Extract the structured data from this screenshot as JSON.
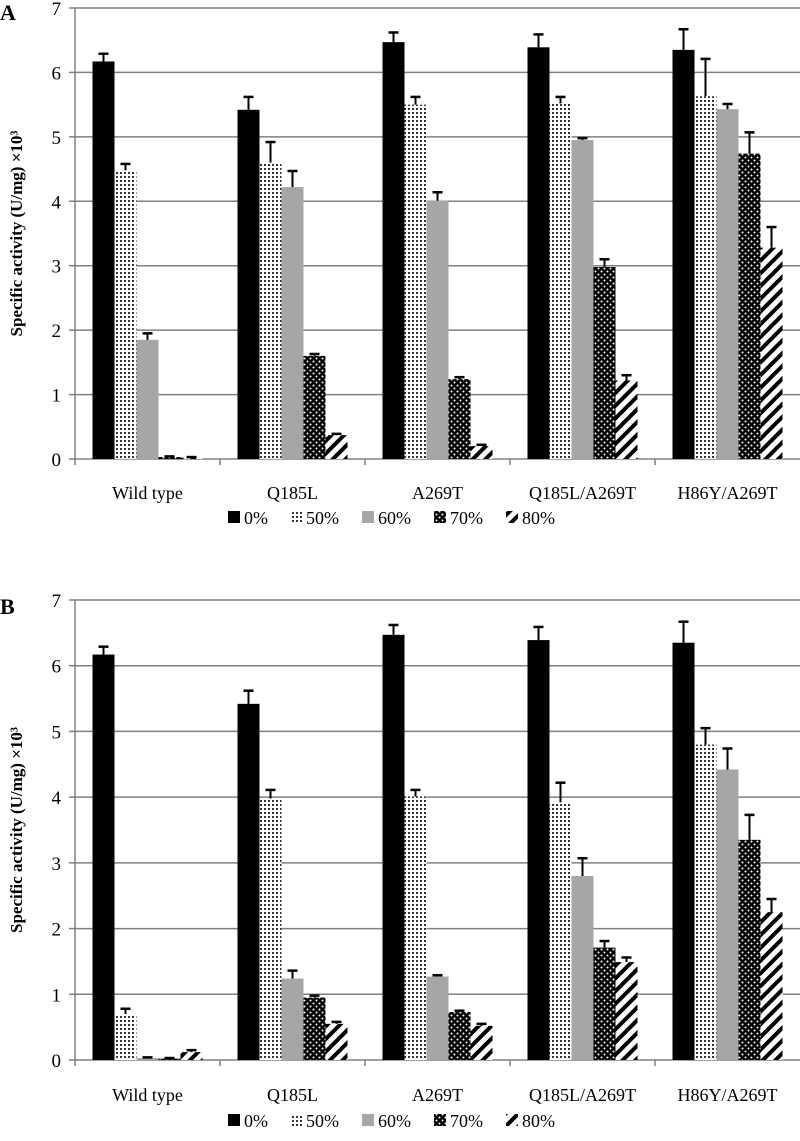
{
  "chart_data": [
    {
      "type": "bar",
      "panel": "A",
      "ylabel": "Specific activity (U/mg) ×10³",
      "ylim": [
        0,
        7
      ],
      "yticks": [
        "0",
        "1",
        "2",
        "3",
        "4",
        "5",
        "6",
        "7"
      ],
      "grid": true,
      "legend_position": "bottom",
      "categories": [
        "Wild type",
        "Q185L",
        "A269T",
        "Q185L/A269T",
        "H86Y/A269T"
      ],
      "series": [
        {
          "name": "0%",
          "values": [
            6.17,
            5.42,
            6.47,
            6.39,
            6.35
          ],
          "errors": [
            0.12,
            0.2,
            0.15,
            0.2,
            0.32
          ]
        },
        {
          "name": "50%",
          "values": [
            4.48,
            4.6,
            5.5,
            5.52,
            5.63
          ],
          "errors": [
            0.1,
            0.32,
            0.12,
            0.1,
            0.58
          ]
        },
        {
          "name": "60%",
          "values": [
            1.85,
            4.22,
            4.01,
            4.95,
            5.43
          ],
          "errors": [
            0.1,
            0.25,
            0.13,
            0.03,
            0.08
          ]
        },
        {
          "name": "70%",
          "values": [
            0.03,
            1.6,
            1.24,
            2.98,
            4.74
          ],
          "errors": [
            0.01,
            0.03,
            0.03,
            0.12,
            0.33
          ]
        },
        {
          "name": "80%",
          "values": [
            0.02,
            0.37,
            0.2,
            1.22,
            3.28
          ],
          "errors": [
            0.01,
            0.02,
            0.02,
            0.08,
            0.32
          ]
        }
      ]
    },
    {
      "type": "bar",
      "panel": "B",
      "ylabel": "Specific activity (U/mg) ×10³",
      "ylim": [
        0,
        7
      ],
      "yticks": [
        "0",
        "1",
        "2",
        "3",
        "4",
        "5",
        "6",
        "7"
      ],
      "grid": true,
      "legend_position": "bottom",
      "categories": [
        "Wild type",
        "Q185L",
        "A269T",
        "Q185L/A269T",
        "H86Y/A269T"
      ],
      "series": [
        {
          "name": "0%",
          "values": [
            6.17,
            5.42,
            6.47,
            6.39,
            6.35
          ],
          "errors": [
            0.12,
            0.2,
            0.15,
            0.2,
            0.32
          ]
        },
        {
          "name": "50%",
          "values": [
            0.7,
            3.98,
            4.01,
            3.92,
            4.8
          ],
          "errors": [
            0.08,
            0.13,
            0.1,
            0.3,
            0.25
          ]
        },
        {
          "name": "60%",
          "values": [
            0.03,
            1.24,
            1.27,
            2.8,
            4.42
          ],
          "errors": [
            0.01,
            0.12,
            0.02,
            0.27,
            0.32
          ]
        },
        {
          "name": "70%",
          "values": [
            0.02,
            0.95,
            0.73,
            1.71,
            3.35
          ],
          "errors": [
            0.01,
            0.03,
            0.02,
            0.1,
            0.38
          ]
        },
        {
          "name": "80%",
          "values": [
            0.12,
            0.55,
            0.52,
            1.49,
            2.25
          ],
          "errors": [
            0.03,
            0.03,
            0.03,
            0.07,
            0.2
          ]
        }
      ]
    }
  ]
}
